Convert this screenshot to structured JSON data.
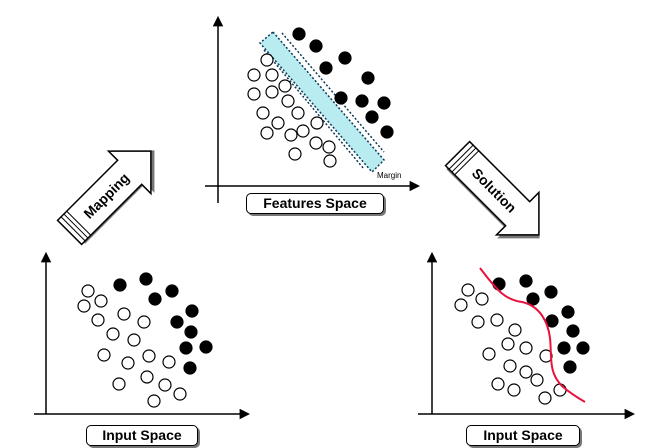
{
  "labels": {
    "features_space": "Features Space",
    "input_space_left": "Input Space",
    "input_space_right": "Input Space",
    "margin": "Margin",
    "mapping_arrow": "Mapping",
    "solution_arrow": "Solution"
  },
  "colors": {
    "margin_band": "#b9ecf1",
    "boundary_curve": "#e8123c",
    "filled_point": "#000000",
    "hollow_point": "#ffffff",
    "axis": "#000000",
    "shadow": "#777777"
  },
  "icons": {
    "mapping_arrow": "block-arrow-up-right",
    "solution_arrow": "block-arrow-down-right"
  }
}
